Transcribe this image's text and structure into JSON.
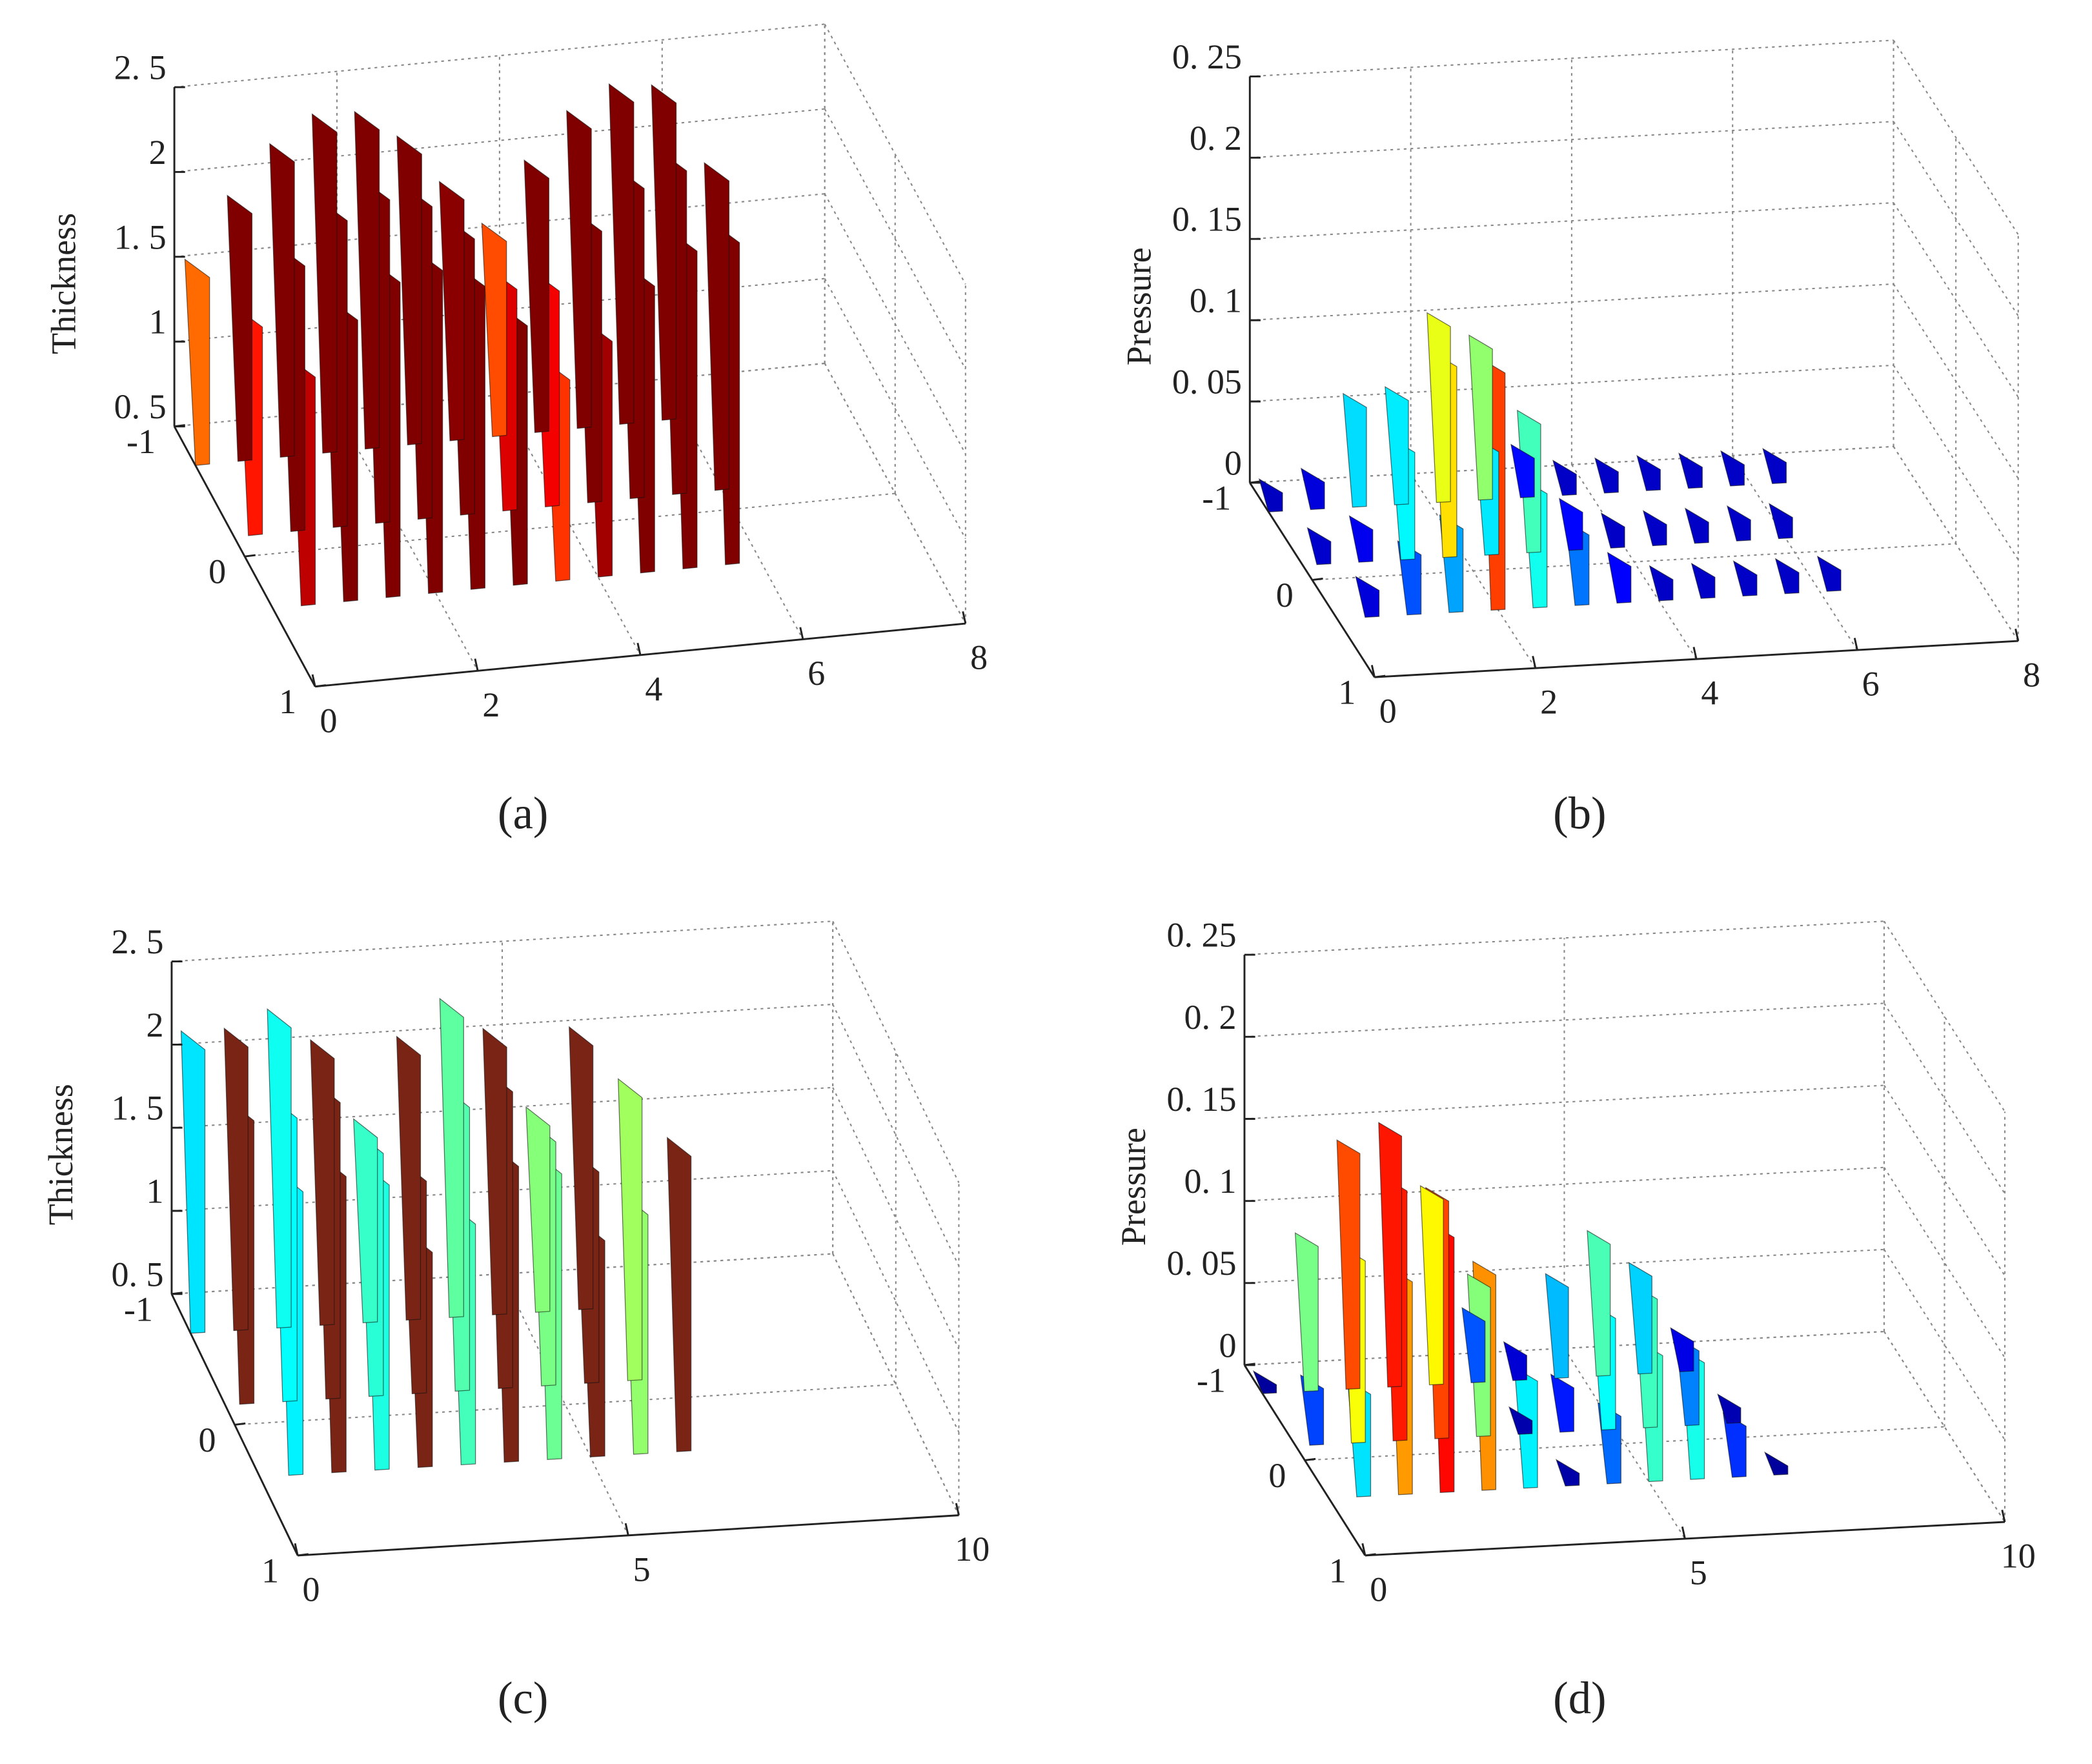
{
  "chart_data": [
    {
      "type": "surface3d",
      "zlabel": "Thickness",
      "caption": "(a)",
      "xlim": [
        0,
        8
      ],
      "xticks": [
        0,
        2,
        4,
        6,
        8
      ],
      "ylim": [
        -1,
        1
      ],
      "yticks": [
        -1,
        0,
        1
      ],
      "zlim": [
        0.5,
        2.5
      ],
      "zticks": [
        {
          "value": 0.5,
          "label": "0. 5"
        },
        1,
        {
          "value": 1.5,
          "label": "1. 5"
        },
        2,
        {
          "value": 2.5,
          "label": "2. 5"
        }
      ],
      "grid": true
    },
    {
      "type": "surface3d",
      "zlabel": "Pressure",
      "caption": "(b)",
      "xlim": [
        0,
        8
      ],
      "xticks": [
        0,
        2,
        4,
        6,
        8
      ],
      "ylim": [
        -1,
        1
      ],
      "yticks": [
        -1,
        0,
        1
      ],
      "zlim": [
        0,
        0.25
      ],
      "zticks": [
        0,
        {
          "value": 0.05,
          "label": "0. 05"
        },
        {
          "value": 0.1,
          "label": "0. 1"
        },
        {
          "value": 0.15,
          "label": "0. 15"
        },
        {
          "value": 0.2,
          "label": "0. 2"
        },
        {
          "value": 0.25,
          "label": "0. 25"
        }
      ],
      "grid": true
    },
    {
      "type": "surface3d",
      "zlabel": "Thickness",
      "caption": "(c)",
      "xlim": [
        0,
        10
      ],
      "xticks": [
        0,
        5,
        10
      ],
      "ylim": [
        -1,
        1
      ],
      "yticks": [
        -1,
        0,
        1
      ],
      "zlim": [
        0.5,
        2.5
      ],
      "zticks": [
        {
          "value": 0.5,
          "label": "0. 5"
        },
        1,
        {
          "value": 1.5,
          "label": "1. 5"
        },
        2,
        {
          "value": 2.5,
          "label": "2. 5"
        }
      ],
      "grid": true
    },
    {
      "type": "surface3d",
      "zlabel": "Pressure",
      "caption": "(d)",
      "xlim": [
        0,
        10
      ],
      "xticks": [
        0,
        5,
        10
      ],
      "ylim": [
        -1,
        1
      ],
      "yticks": [
        -1,
        0,
        1
      ],
      "zlim": [
        0,
        0.25
      ],
      "zticks": [
        0,
        {
          "value": 0.05,
          "label": "0. 05"
        },
        {
          "value": 0.1,
          "label": "0. 1"
        },
        {
          "value": 0.15,
          "label": "0. 15"
        },
        {
          "value": 0.2,
          "label": "0. 2"
        },
        {
          "value": 0.25,
          "label": "0. 25"
        }
      ],
      "grid": true
    }
  ]
}
